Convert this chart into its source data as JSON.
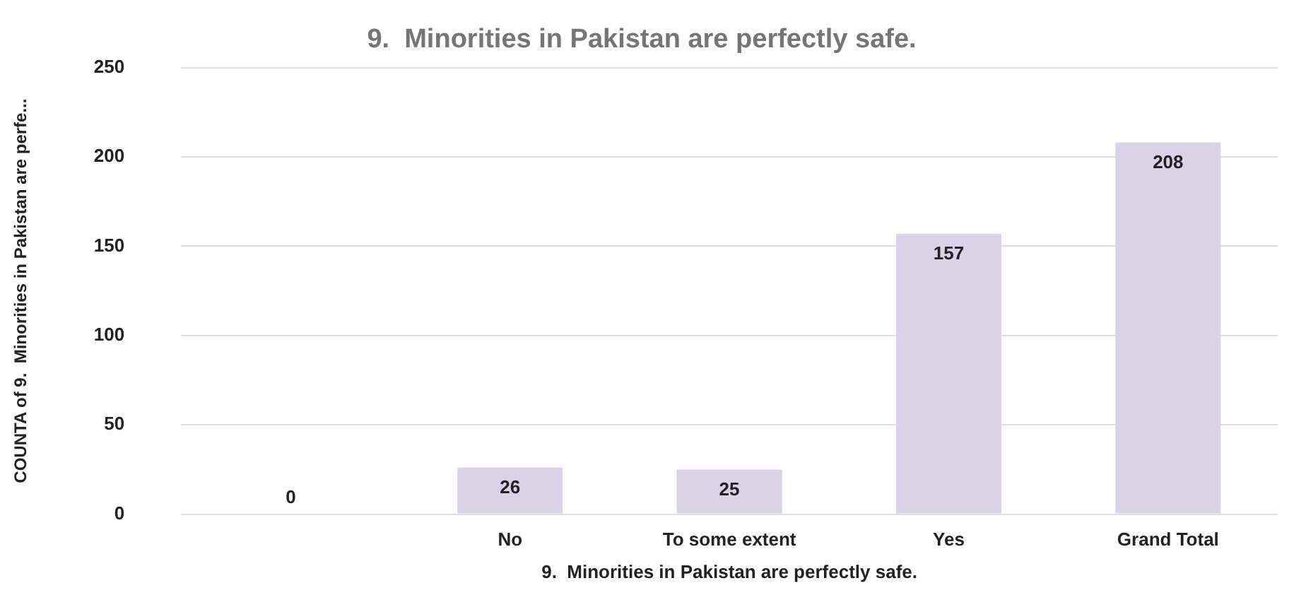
{
  "chart_data": {
    "type": "bar",
    "title": "9.  Minorities in Pakistan are perfectly safe.",
    "xlabel": "9.  Minorities in Pakistan are perfectly safe.",
    "ylabel": "COUNTA of 9.  Minorities in Pakistan are perfe...",
    "categories": [
      null,
      "No",
      "To some extent",
      "Yes",
      "Grand Total"
    ],
    "values": [
      0,
      26,
      25,
      157,
      208
    ],
    "color": "#d9d2e9",
    "ylim": [
      0,
      250
    ],
    "yticks": [
      0,
      50,
      100,
      150,
      200,
      250
    ],
    "grid": "y",
    "legend": false,
    "data_labels": true
  }
}
